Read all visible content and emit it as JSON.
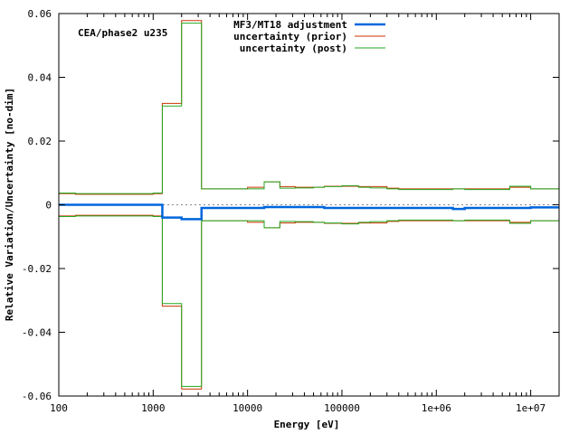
{
  "chart_data": {
    "type": "line",
    "title": "",
    "annotation": "CEA/phase2 u235",
    "xlabel": "Energy [eV]",
    "ylabel": "Relative Variation/Uncertainty [no-dim]",
    "xscale": "log",
    "xlim": [
      100,
      20000000
    ],
    "ylim": [
      -0.06,
      0.06
    ],
    "x_ticks": [
      100,
      1000,
      10000,
      100000,
      1000000,
      10000000
    ],
    "x_tick_labels": [
      "100",
      "1000",
      "10000",
      "100000",
      "1e+06",
      "1e+07"
    ],
    "y_ticks": [
      -0.06,
      -0.04,
      -0.02,
      0,
      0.02,
      0.04,
      0.06
    ],
    "y_tick_labels": [
      "-0.06",
      "-0.04",
      "-0.02",
      "0",
      "0.02",
      "0.04",
      "0.06"
    ],
    "zero_line": true,
    "legend_position": "top-center",
    "bin_edges": [
      100,
      150,
      1000,
      1250,
      2000,
      3250,
      10000,
      15000,
      22000,
      32000,
      50000,
      65000,
      100000,
      150000,
      200000,
      300000,
      400000,
      1000000,
      1500000,
      2000000,
      6000000,
      10000000,
      20000000
    ],
    "series": [
      {
        "name": "MF3/MT18 adjustment",
        "color": "#0066dd",
        "style": "step",
        "values": [
          0.0,
          0.0,
          0.0,
          -0.004,
          -0.0045,
          -0.001,
          -0.001,
          -0.0007,
          -0.0007,
          -0.0007,
          -0.0007,
          -0.001,
          -0.001,
          -0.001,
          -0.001,
          -0.001,
          -0.001,
          -0.001,
          -0.0013,
          -0.001,
          -0.001,
          -0.0008
        ]
      },
      {
        "name": "uncertainty (prior)",
        "color": "#cc3300",
        "style": "step-symmetric",
        "values": [
          0.0035,
          0.0033,
          0.0035,
          0.0318,
          0.0578,
          0.005,
          0.0055,
          0.0072,
          0.0057,
          0.0055,
          0.0055,
          0.0058,
          0.0058,
          0.0057,
          0.0057,
          0.0052,
          0.005,
          0.005,
          0.005,
          0.005,
          0.0055,
          0.005
        ]
      },
      {
        "name": "uncertainty (post)",
        "color": "#22aa22",
        "style": "step-symmetric",
        "values": [
          0.0037,
          0.0035,
          0.0037,
          0.031,
          0.057,
          0.005,
          0.005,
          0.0072,
          0.0052,
          0.0053,
          0.0055,
          0.0057,
          0.006,
          0.0055,
          0.0053,
          0.005,
          0.0048,
          0.0048,
          0.005,
          0.0048,
          0.0058,
          0.005
        ]
      }
    ]
  }
}
